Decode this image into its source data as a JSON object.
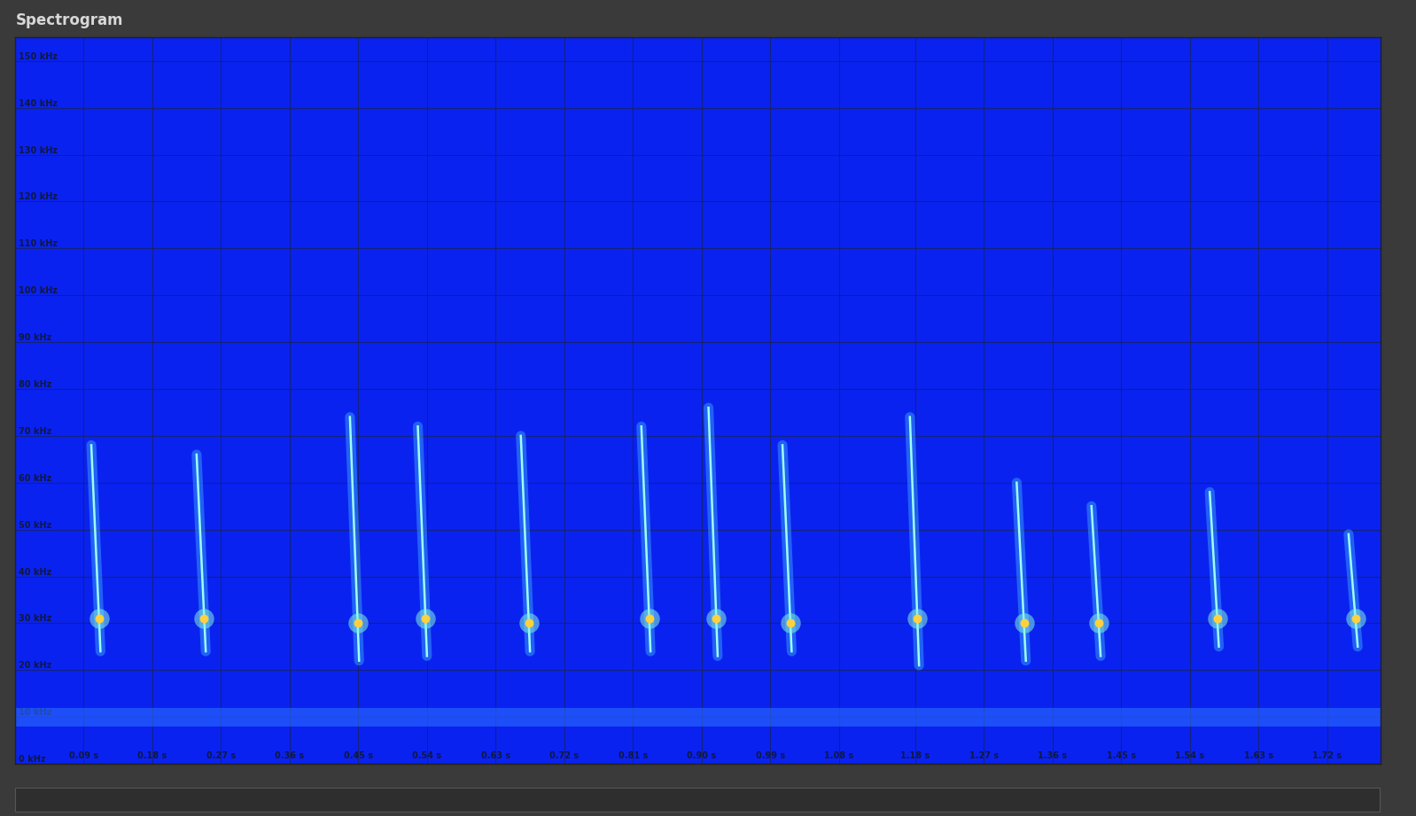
{
  "chart_data": {
    "type": "spectrogram",
    "title": "Spectrogram",
    "xlim": [
      0,
      1.79
    ],
    "ylim": [
      0,
      155
    ],
    "xticks": [
      {
        "value": 0.09,
        "label": "0.09 s"
      },
      {
        "value": 0.18,
        "label": "0.18 s"
      },
      {
        "value": 0.27,
        "label": "0.27 s"
      },
      {
        "value": 0.36,
        "label": "0.36 s"
      },
      {
        "value": 0.45,
        "label": "0.45 s"
      },
      {
        "value": 0.54,
        "label": "0.54 s"
      },
      {
        "value": 0.63,
        "label": "0.63 s"
      },
      {
        "value": 0.72,
        "label": "0.72 s"
      },
      {
        "value": 0.81,
        "label": "0.81 s"
      },
      {
        "value": 0.9,
        "label": "0.90 s"
      },
      {
        "value": 0.99,
        "label": "0.99 s"
      },
      {
        "value": 1.08,
        "label": "1.08 s"
      },
      {
        "value": 1.18,
        "label": "1.18 s"
      },
      {
        "value": 1.27,
        "label": "1.27 s"
      },
      {
        "value": 1.36,
        "label": "1.36 s"
      },
      {
        "value": 1.45,
        "label": "1.45 s"
      },
      {
        "value": 1.54,
        "label": "1.54 s"
      },
      {
        "value": 1.63,
        "label": "1.63 s"
      },
      {
        "value": 1.72,
        "label": "1.72 s"
      }
    ],
    "yticks": [
      {
        "value": 0,
        "label": "0 kHz"
      },
      {
        "value": 10,
        "label": "10 kHz"
      },
      {
        "value": 20,
        "label": "20 kHz"
      },
      {
        "value": 30,
        "label": "30 kHz"
      },
      {
        "value": 40,
        "label": "40 kHz"
      },
      {
        "value": 50,
        "label": "50 kHz"
      },
      {
        "value": 60,
        "label": "60 kHz"
      },
      {
        "value": 70,
        "label": "70 kHz"
      },
      {
        "value": 80,
        "label": "80 kHz"
      },
      {
        "value": 90,
        "label": "90 kHz"
      },
      {
        "value": 100,
        "label": "100 kHz"
      },
      {
        "value": 110,
        "label": "110 kHz"
      },
      {
        "value": 120,
        "label": "120 kHz"
      },
      {
        "value": 130,
        "label": "130 kHz"
      },
      {
        "value": 140,
        "label": "140 kHz"
      },
      {
        "value": 150,
        "label": "150 kHz"
      }
    ],
    "grid": true,
    "color": "#9ffcff",
    "noise_band": [
      8,
      12
    ],
    "calls": [
      {
        "start_time": 0.1,
        "end_time": 0.112,
        "start_freq": 68,
        "end_freq": 24,
        "peak_freq": 31
      },
      {
        "start_time": 0.238,
        "end_time": 0.25,
        "start_freq": 66,
        "end_freq": 24,
        "peak_freq": 31
      },
      {
        "start_time": 0.439,
        "end_time": 0.451,
        "start_freq": 74,
        "end_freq": 22,
        "peak_freq": 30
      },
      {
        "start_time": 0.528,
        "end_time": 0.54,
        "start_freq": 72,
        "end_freq": 23,
        "peak_freq": 31
      },
      {
        "start_time": 0.663,
        "end_time": 0.675,
        "start_freq": 70,
        "end_freq": 24,
        "peak_freq": 30
      },
      {
        "start_time": 0.821,
        "end_time": 0.833,
        "start_freq": 72,
        "end_freq": 24,
        "peak_freq": 31
      },
      {
        "start_time": 0.909,
        "end_time": 0.921,
        "start_freq": 76,
        "end_freq": 23,
        "peak_freq": 31
      },
      {
        "start_time": 1.006,
        "end_time": 1.018,
        "start_freq": 68,
        "end_freq": 24,
        "peak_freq": 30
      },
      {
        "start_time": 1.173,
        "end_time": 1.185,
        "start_freq": 74,
        "end_freq": 21,
        "peak_freq": 31
      },
      {
        "start_time": 1.313,
        "end_time": 1.325,
        "start_freq": 60,
        "end_freq": 22,
        "peak_freq": 30
      },
      {
        "start_time": 1.411,
        "end_time": 1.423,
        "start_freq": 55,
        "end_freq": 23,
        "peak_freq": 30
      },
      {
        "start_time": 1.566,
        "end_time": 1.578,
        "start_freq": 58,
        "end_freq": 25,
        "peak_freq": 31
      },
      {
        "start_time": 1.748,
        "end_time": 1.76,
        "start_freq": 49,
        "end_freq": 25,
        "peak_freq": 31
      }
    ]
  }
}
